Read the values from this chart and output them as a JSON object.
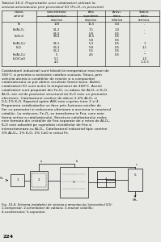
{
  "title_line1": "Tabelul 10.3. Proprietatile unor catalizatori utilizati la",
  "title_line2": "sinteza amoniacului prin procedeul ICI (Fe₃O₄ in procente)",
  "col_headers": [
    "Catalizatorul",
    "Concentratia\ncomponentei\nreactive",
    "Aria suprafetei\nreactive",
    "Activitatea\nrelativa",
    "Stabilitatea\ntermica"
  ],
  "body_text_lines": [
    "Catalizatorii industriali sunt folositi la temperaturi mai mari de",
    "350°C si prezinta o activitate catalica scazuta. Totusi, prin",
    "selectia atenta a conditiilor de reactie si a compozitiei",
    "catalizatorului se pot obtine rezultate foarte bune. Astfel,",
    "catalizatorii ICI sunt activi la temperaturi de 400°C. Acesti",
    "catalizatori sunt preparati din Fe₃O₄ cu adaos de Al₂O₃ si K₂O.",
    "Al₂O₃ are rol de promotor structural iar K₂O este un promotor",
    "electronic. Catalizatorul contine de obicei 2-4% Al₂O₃ si",
    "0,5-1% K₂O. Raportul optim Al/K este cuprins intre 2 si 4.",
    "Prepararea catalizatorilor se face prin fuziunea oxizilor de",
    "fier cu promotori si reducerea ulterioara a acestora in reactorul",
    "catalitic. La reducere, Fe₃O₄ se transforma in Feα, care este",
    "forma activa a catalizatorului. Structura catalizatorului redus",
    "este formata din cristalite de Feα separate de o retea de Al₂O₃.",
    "K₂O este adsorbit pe suprafata cristalitelor de Feα si",
    "interactioneaza cu Al₂O₃. Catalizatorul industrial tipic contine",
    "3% Al₂O₃, 1% K₂O, 2% CaO si restul Fe."
  ],
  "fig_caption_lines": [
    "Fig. 10.4. Schema instalatiei de sinteza a amoniacului (procedeul ICI):",
    "1-compresor; 2-schimbator de caldura; 3-reactor catalitic;",
    "4-condensator; 5-separator."
  ],
  "page_number": "224",
  "bg_color": "#e8e8e4",
  "text_color": "#111111",
  "diagram_color": "#111111"
}
